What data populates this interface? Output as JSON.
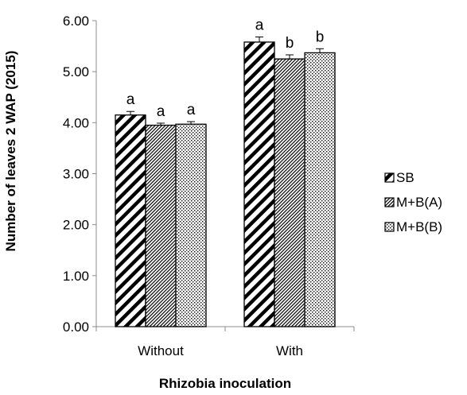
{
  "chart_data": {
    "type": "bar",
    "categories": [
      "Without",
      "With"
    ],
    "series": [
      {
        "name": "SB",
        "values": [
          4.15,
          5.58
        ],
        "errors": [
          0.07,
          0.1
        ],
        "letters": [
          "a",
          "a"
        ],
        "pattern": "wide-diagonal"
      },
      {
        "name": "M+B(A)",
        "values": [
          3.95,
          5.25
        ],
        "errors": [
          0.04,
          0.08
        ],
        "letters": [
          "a",
          "b"
        ],
        "pattern": "dense-diagonal"
      },
      {
        "name": "M+B(B)",
        "values": [
          3.97,
          5.37
        ],
        "errors": [
          0.05,
          0.08
        ],
        "letters": [
          "a",
          "b"
        ],
        "pattern": "dots"
      }
    ],
    "yticks": [
      "0.00",
      "1.00",
      "2.00",
      "3.00",
      "4.00",
      "5.00",
      "6.00"
    ],
    "ylim": [
      0,
      6
    ],
    "xlabel": "Rhizobia inoculation",
    "ylabel": "Number of leaves 2 WAP (2015)",
    "legend_position": "right",
    "grid": false
  }
}
